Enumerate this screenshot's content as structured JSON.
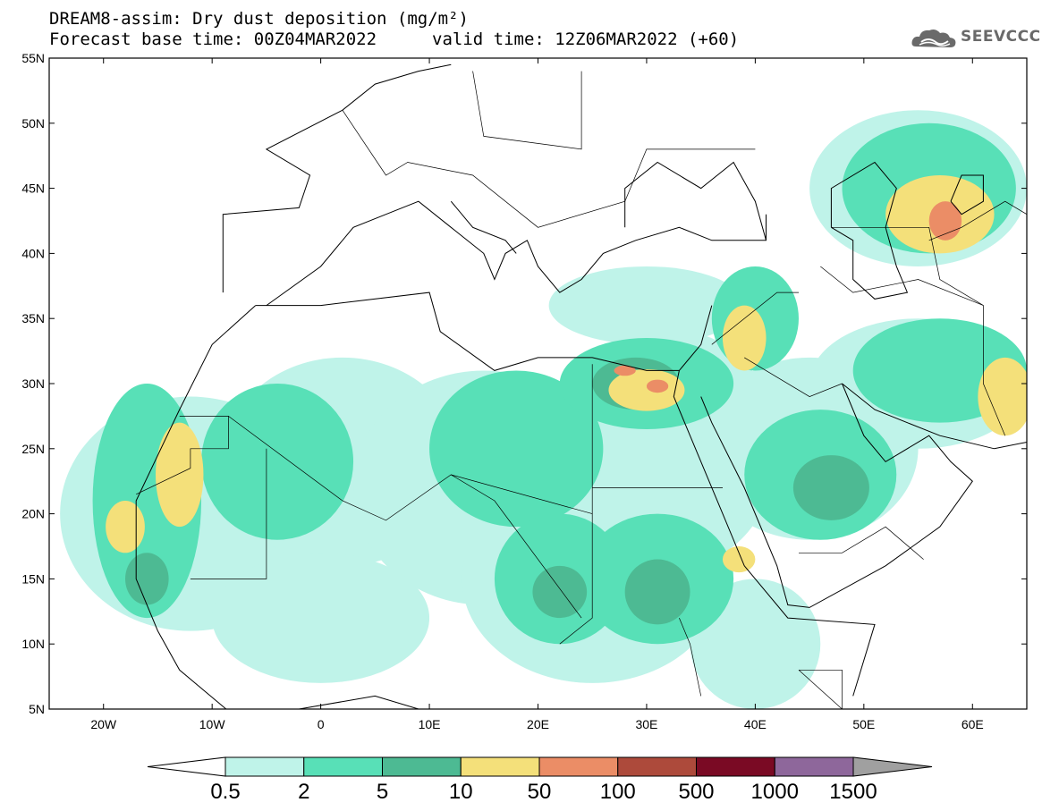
{
  "title": {
    "line1": "DREAM8-assim: Dry dust deposition (mg/m²)",
    "line2": "Forecast base time: 00Z04MAR2022",
    "valid": "valid time: 12Z06MAR2022 (+60)"
  },
  "logo": {
    "text": "SEEVCCC",
    "icon": "cloud-icon",
    "color": "#6a6a6a"
  },
  "map": {
    "lon_range": [
      -25,
      65
    ],
    "lat_range": [
      5,
      55
    ],
    "lat_ticks": [
      {
        "value": 55,
        "label": "55N"
      },
      {
        "value": 50,
        "label": "50N"
      },
      {
        "value": 45,
        "label": "45N"
      },
      {
        "value": 40,
        "label": "40N"
      },
      {
        "value": 35,
        "label": "35N"
      },
      {
        "value": 30,
        "label": "30N"
      },
      {
        "value": 25,
        "label": "25N"
      },
      {
        "value": 20,
        "label": "20N"
      },
      {
        "value": 15,
        "label": "15N"
      },
      {
        "value": 10,
        "label": "10N"
      },
      {
        "value": 5,
        "label": "5N"
      }
    ],
    "lon_ticks": [
      {
        "value": -20,
        "label": "20W"
      },
      {
        "value": -10,
        "label": "10W"
      },
      {
        "value": 0,
        "label": "0"
      },
      {
        "value": 10,
        "label": "10E"
      },
      {
        "value": 20,
        "label": "20E"
      },
      {
        "value": 30,
        "label": "30E"
      },
      {
        "value": 40,
        "label": "40E"
      },
      {
        "value": 50,
        "label": "50E"
      },
      {
        "value": 60,
        "label": "60E"
      }
    ]
  },
  "colorbar": {
    "under_color": "#ffffff",
    "over_color": "#a0a0a0",
    "colors": [
      "#bff3e9",
      "#58e0b7",
      "#4dba93",
      "#f4e07a",
      "#eb8d66",
      "#ad4a3b",
      "#7a0a24",
      "#8e679b"
    ],
    "labels": [
      "0.5",
      "2",
      "5",
      "10",
      "50",
      "100",
      "500",
      "1000",
      "1500"
    ]
  },
  "dust_fields": [
    {
      "level": 0,
      "lon": -12,
      "lat": 20,
      "rx": 12,
      "ry": 9
    },
    {
      "level": 0,
      "lon": 2,
      "lat": 24,
      "rx": 11,
      "ry": 8
    },
    {
      "level": 0,
      "lon": 15,
      "lat": 22,
      "rx": 12,
      "ry": 9
    },
    {
      "level": 0,
      "lon": 25,
      "lat": 15,
      "rx": 12,
      "ry": 8
    },
    {
      "level": 0,
      "lon": 33,
      "lat": 25,
      "rx": 9,
      "ry": 9
    },
    {
      "level": 0,
      "lon": 45,
      "lat": 25,
      "rx": 10,
      "ry": 7
    },
    {
      "level": 0,
      "lon": 55,
      "lat": 30,
      "rx": 10,
      "ry": 5
    },
    {
      "level": 0,
      "lon": 55,
      "lat": 45,
      "rx": 10,
      "ry": 6
    },
    {
      "level": 0,
      "lon": 30,
      "lat": 36,
      "rx": 9,
      "ry": 3
    },
    {
      "level": 0,
      "lon": 0,
      "lat": 12,
      "rx": 10,
      "ry": 5
    },
    {
      "level": 0,
      "lon": 40,
      "lat": 10,
      "rx": 6,
      "ry": 5
    },
    {
      "level": 1,
      "lon": -16,
      "lat": 21,
      "rx": 5,
      "ry": 9
    },
    {
      "level": 1,
      "lon": -4,
      "lat": 24,
      "rx": 7,
      "ry": 6
    },
    {
      "level": 1,
      "lon": 18,
      "lat": 25,
      "rx": 8,
      "ry": 6
    },
    {
      "level": 1,
      "lon": 22,
      "lat": 15,
      "rx": 6,
      "ry": 5
    },
    {
      "level": 1,
      "lon": 31,
      "lat": 15,
      "rx": 7,
      "ry": 5
    },
    {
      "level": 1,
      "lon": 30,
      "lat": 30,
      "rx": 8,
      "ry": 3.5
    },
    {
      "level": 1,
      "lon": 46,
      "lat": 23,
      "rx": 7,
      "ry": 5
    },
    {
      "level": 1,
      "lon": 57,
      "lat": 31,
      "rx": 8,
      "ry": 4
    },
    {
      "level": 1,
      "lon": 56,
      "lat": 45,
      "rx": 8,
      "ry": 5
    },
    {
      "level": 1,
      "lon": 40,
      "lat": 35,
      "rx": 4,
      "ry": 4
    },
    {
      "level": 2,
      "lon": 22,
      "lat": 14,
      "rx": 2.5,
      "ry": 2
    },
    {
      "level": 2,
      "lon": 31,
      "lat": 14,
      "rx": 3,
      "ry": 2.5
    },
    {
      "level": 2,
      "lon": 47,
      "lat": 22,
      "rx": 3.5,
      "ry": 2.5
    },
    {
      "level": 2,
      "lon": -16,
      "lat": 15,
      "rx": 2,
      "ry": 2
    },
    {
      "level": 2,
      "lon": 29,
      "lat": 30,
      "rx": 4,
      "ry": 2
    },
    {
      "level": 3,
      "lon": -18,
      "lat": 19,
      "rx": 1.8,
      "ry": 2
    },
    {
      "level": 3,
      "lon": -13,
      "lat": 23,
      "rx": 2.2,
      "ry": 4
    },
    {
      "level": 3,
      "lon": 30,
      "lat": 29.5,
      "rx": 3.5,
      "ry": 1.6
    },
    {
      "level": 3,
      "lon": 39,
      "lat": 33.5,
      "rx": 2,
      "ry": 2.5
    },
    {
      "level": 3,
      "lon": 38.5,
      "lat": 16.5,
      "rx": 1.5,
      "ry": 1
    },
    {
      "level": 3,
      "lon": 57,
      "lat": 43,
      "rx": 5,
      "ry": 3
    },
    {
      "level": 3,
      "lon": 63,
      "lat": 29,
      "rx": 2.5,
      "ry": 3
    },
    {
      "level": 4,
      "lon": 31,
      "lat": 29.8,
      "rx": 1,
      "ry": 0.5
    },
    {
      "level": 4,
      "lon": 28,
      "lat": 31,
      "rx": 1,
      "ry": 0.4
    },
    {
      "level": 4,
      "lon": 57.5,
      "lat": 42.5,
      "rx": 1.5,
      "ry": 1.5
    }
  ],
  "coastlines": [
    {
      "name": "west-africa",
      "points": [
        [
          -6,
          36
        ],
        [
          -10,
          33
        ],
        [
          -13,
          28
        ],
        [
          -17,
          21
        ],
        [
          -17,
          15
        ],
        [
          -15,
          11
        ],
        [
          -13,
          8
        ],
        [
          -8,
          4.5
        ],
        [
          -2,
          5
        ],
        [
          5,
          6
        ],
        [
          9,
          5
        ]
      ]
    },
    {
      "name": "north-africa",
      "points": [
        [
          -6,
          36
        ],
        [
          0,
          36
        ],
        [
          10,
          37
        ],
        [
          11,
          34
        ],
        [
          16,
          31
        ],
        [
          20,
          32
        ],
        [
          25,
          32
        ],
        [
          30,
          31
        ],
        [
          33,
          31
        ],
        [
          35,
          33
        ],
        [
          36,
          36
        ]
      ]
    },
    {
      "name": "red-sea-west",
      "points": [
        [
          33,
          31
        ],
        [
          32.5,
          29
        ],
        [
          34,
          26
        ],
        [
          37,
          20
        ],
        [
          39,
          16
        ],
        [
          43,
          12
        ],
        [
          51,
          11.5
        ],
        [
          49,
          6
        ]
      ]
    },
    {
      "name": "red-sea-east",
      "points": [
        [
          35,
          29
        ],
        [
          36,
          27
        ],
        [
          39,
          22
        ],
        [
          42,
          16
        ],
        [
          43,
          13
        ],
        [
          45,
          12.8
        ],
        [
          52,
          16
        ],
        [
          57,
          19
        ],
        [
          60,
          22.5
        ],
        [
          58,
          24
        ],
        [
          56,
          26
        ],
        [
          52,
          24
        ],
        [
          50,
          26
        ],
        [
          48,
          30
        ]
      ]
    },
    {
      "name": "persian-gulf-north",
      "points": [
        [
          48,
          30
        ],
        [
          51,
          28
        ],
        [
          54,
          27
        ],
        [
          57,
          26
        ],
        [
          62,
          25
        ],
        [
          65,
          25.5
        ]
      ]
    },
    {
      "name": "europe-south",
      "points": [
        [
          -9,
          37
        ],
        [
          -9,
          43
        ],
        [
          -2,
          43.5
        ],
        [
          -1,
          46
        ],
        [
          -5,
          48
        ],
        [
          2,
          51
        ],
        [
          5,
          53
        ],
        [
          9,
          54
        ],
        [
          12,
          54.5
        ]
      ]
    },
    {
      "name": "mediterranean-north",
      "points": [
        [
          -5,
          36
        ],
        [
          0,
          39
        ],
        [
          3,
          42
        ],
        [
          6,
          43
        ],
        [
          9,
          44
        ],
        [
          12,
          42
        ],
        [
          15,
          40
        ],
        [
          16,
          38
        ],
        [
          17,
          40
        ],
        [
          19,
          41
        ],
        [
          20,
          39
        ],
        [
          22,
          37
        ],
        [
          24,
          38
        ],
        [
          26,
          40
        ],
        [
          29,
          41
        ],
        [
          33,
          42
        ],
        [
          36,
          41
        ],
        [
          41,
          41
        ],
        [
          41,
          43
        ]
      ]
    },
    {
      "name": "italy-east",
      "points": [
        [
          12,
          44
        ],
        [
          14,
          42
        ],
        [
          17,
          41
        ],
        [
          18,
          40
        ]
      ]
    },
    {
      "name": "black-sea",
      "points": [
        [
          28,
          42
        ],
        [
          28,
          45
        ],
        [
          31,
          47
        ],
        [
          35,
          45
        ],
        [
          38,
          47
        ],
        [
          40,
          44
        ],
        [
          41,
          41
        ]
      ]
    },
    {
      "name": "caspian",
      "points": [
        [
          47,
          42
        ],
        [
          47,
          45
        ],
        [
          51,
          47
        ],
        [
          53,
          45
        ],
        [
          52,
          42
        ],
        [
          53,
          39
        ],
        [
          54,
          37
        ],
        [
          51,
          36.5
        ],
        [
          49,
          38
        ],
        [
          49,
          41
        ],
        [
          47,
          42
        ]
      ]
    },
    {
      "name": "aral",
      "points": [
        [
          58,
          44
        ],
        [
          59,
          46
        ],
        [
          61,
          46
        ],
        [
          61,
          44
        ],
        [
          59,
          43
        ],
        [
          58,
          44
        ]
      ]
    }
  ],
  "borders": [
    {
      "name": "border-1",
      "points": [
        [
          -13,
          27.5
        ],
        [
          -8.5,
          27.5
        ],
        [
          -8.5,
          25
        ],
        [
          -12,
          25
        ],
        [
          -12,
          23.5
        ],
        [
          -17,
          21.5
        ]
      ]
    },
    {
      "name": "border-2",
      "points": [
        [
          -5,
          25
        ],
        [
          -5,
          15
        ],
        [
          -12,
          15
        ]
      ]
    },
    {
      "name": "border-3",
      "points": [
        [
          -8.5,
          27.5
        ],
        [
          2,
          21
        ],
        [
          6,
          19.5
        ],
        [
          12,
          23
        ],
        [
          25,
          20
        ]
      ]
    },
    {
      "name": "border-4",
      "points": [
        [
          25,
          31.5
        ],
        [
          25,
          20
        ],
        [
          25,
          12
        ],
        [
          22,
          10
        ]
      ]
    },
    {
      "name": "border-5",
      "points": [
        [
          25,
          22
        ],
        [
          37,
          22
        ]
      ]
    },
    {
      "name": "border-6",
      "points": [
        [
          12,
          23
        ],
        [
          16,
          21
        ],
        [
          24,
          12
        ]
      ]
    },
    {
      "name": "border-7",
      "points": [
        [
          33,
          12
        ],
        [
          34,
          10
        ],
        [
          35,
          6
        ]
      ]
    },
    {
      "name": "border-8",
      "points": [
        [
          39,
          32
        ],
        [
          45,
          29
        ],
        [
          48,
          30
        ]
      ]
    },
    {
      "name": "border-9",
      "points": [
        [
          36,
          33
        ],
        [
          42,
          37
        ],
        [
          44,
          37
        ]
      ]
    },
    {
      "name": "border-10",
      "points": [
        [
          46,
          39
        ],
        [
          49,
          37
        ],
        [
          55,
          38
        ],
        [
          61,
          36
        ],
        [
          61,
          30
        ],
        [
          63,
          26
        ]
      ]
    },
    {
      "name": "border-11",
      "points": [
        [
          55.5,
          16.5
        ],
        [
          52,
          19
        ],
        [
          48,
          17
        ],
        [
          44,
          17
        ]
      ]
    },
    {
      "name": "border-12",
      "points": [
        [
          44,
          8
        ],
        [
          48,
          5
        ],
        [
          48,
          8
        ],
        [
          44,
          8
        ]
      ]
    },
    {
      "name": "border-13",
      "points": [
        [
          2,
          51
        ],
        [
          6,
          46
        ],
        [
          8,
          47
        ],
        [
          14,
          46
        ],
        [
          20,
          42
        ],
        [
          28,
          44
        ],
        [
          30,
          48
        ],
        [
          40,
          48
        ]
      ]
    },
    {
      "name": "border-14",
      "points": [
        [
          14,
          54
        ],
        [
          15,
          49
        ],
        [
          24,
          48
        ],
        [
          24,
          54
        ]
      ]
    },
    {
      "name": "border-15",
      "points": [
        [
          47,
          42
        ],
        [
          56,
          42
        ],
        [
          57,
          38
        ],
        [
          61,
          36
        ]
      ]
    },
    {
      "name": "border-16",
      "points": [
        [
          56,
          41
        ],
        [
          59,
          42
        ],
        [
          63,
          44
        ],
        [
          65,
          43
        ]
      ]
    }
  ]
}
